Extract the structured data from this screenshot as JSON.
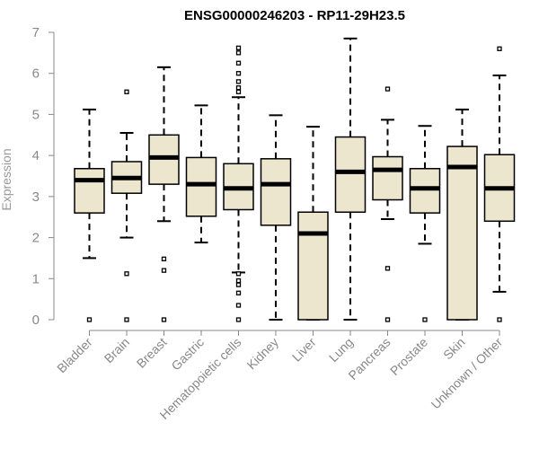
{
  "chart_data": {
    "type": "boxplot",
    "title": "ENSG00000246203 - RP11-29H23.5",
    "xlabel": "",
    "ylabel": "Expression",
    "ylim": [
      0,
      7
    ],
    "yticks": [
      "0",
      "1",
      "2",
      "3",
      "4",
      "5",
      "6",
      "7"
    ],
    "grid": false,
    "colors": {
      "box_fill": "#ede6cf",
      "stroke": "#000000",
      "axis": "#888888",
      "label": "#888888"
    },
    "groups": [
      {
        "category": "Bladder",
        "whisker_low": 1.5,
        "q1": 2.6,
        "median": 3.4,
        "q3": 3.68,
        "whisker_high": 5.12,
        "outliers": [
          0
        ]
      },
      {
        "category": "Brain",
        "whisker_low": 2.0,
        "q1": 3.08,
        "median": 3.45,
        "q3": 3.85,
        "whisker_high": 4.55,
        "outliers": [
          5.55,
          1.12,
          0
        ]
      },
      {
        "category": "Breast",
        "whisker_low": 2.4,
        "q1": 3.3,
        "median": 3.95,
        "q3": 4.5,
        "whisker_high": 6.15,
        "outliers": [
          1.48,
          1.2,
          0
        ]
      },
      {
        "category": "Gastric",
        "whisker_low": 1.88,
        "q1": 2.52,
        "median": 3.3,
        "q3": 3.95,
        "whisker_high": 5.22,
        "outliers": []
      },
      {
        "category": "Hematopoietic cells",
        "whisker_low": 1.15,
        "q1": 2.68,
        "median": 3.2,
        "q3": 3.8,
        "whisker_high": 5.42,
        "outliers": [
          6.62,
          6.5,
          6.25,
          6.0,
          5.8,
          5.65,
          5.55,
          1.12,
          0.95,
          0.85,
          0.65,
          0.35,
          0
        ]
      },
      {
        "category": "Kidney",
        "whisker_low": 0,
        "q1": 2.3,
        "median": 3.3,
        "q3": 3.92,
        "whisker_high": 4.98,
        "outliers": []
      },
      {
        "category": "Liver",
        "whisker_low": 0,
        "q1": 0,
        "median": 2.1,
        "q3": 2.62,
        "whisker_high": 4.7,
        "outliers": []
      },
      {
        "category": "Lung",
        "whisker_low": 0,
        "q1": 2.62,
        "median": 3.6,
        "q3": 4.45,
        "whisker_high": 6.85,
        "outliers": []
      },
      {
        "category": "Pancreas",
        "whisker_low": 2.45,
        "q1": 2.92,
        "median": 3.65,
        "q3": 3.97,
        "whisker_high": 4.87,
        "outliers": [
          5.62,
          1.25,
          0
        ]
      },
      {
        "category": "Prostate",
        "whisker_low": 1.85,
        "q1": 2.6,
        "median": 3.2,
        "q3": 3.68,
        "whisker_high": 4.72,
        "outliers": [
          0
        ]
      },
      {
        "category": "Skin",
        "whisker_low": 0,
        "q1": 0,
        "median": 3.72,
        "q3": 4.22,
        "whisker_high": 5.12,
        "outliers": []
      },
      {
        "category": "Unknown / Other",
        "whisker_low": 0.68,
        "q1": 2.4,
        "median": 3.2,
        "q3": 4.02,
        "whisker_high": 5.95,
        "outliers": [
          6.6,
          0
        ]
      }
    ]
  }
}
